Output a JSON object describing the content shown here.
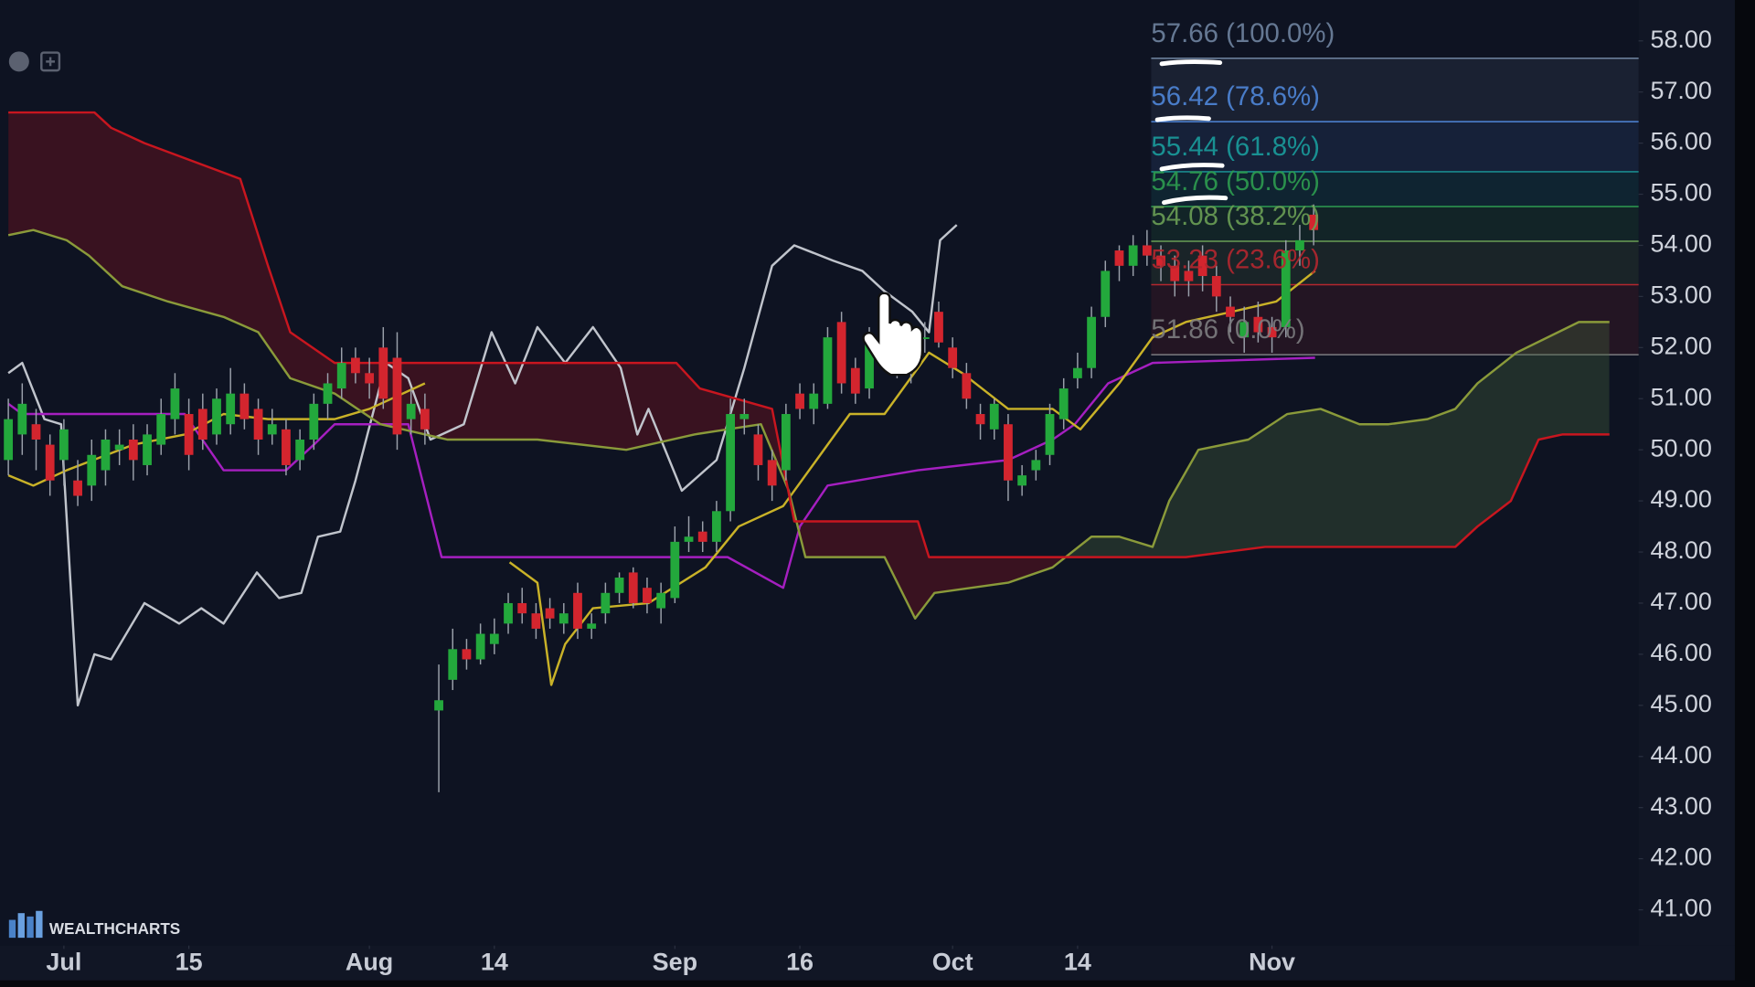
{
  "chart_data": {
    "type": "candlestick",
    "brand": "WEALTHCHARTS",
    "xlim": [
      -0.6,
      117.4
    ],
    "ylim": [
      40.3,
      58.8
    ],
    "xticks": [
      {
        "value": 4,
        "label": "Jul"
      },
      {
        "value": 13,
        "label": "15"
      },
      {
        "value": 26,
        "label": "Aug"
      },
      {
        "value": 35,
        "label": "14"
      },
      {
        "value": 48,
        "label": "Sep"
      },
      {
        "value": 57,
        "label": "16"
      },
      {
        "value": 68,
        "label": "Oct"
      },
      {
        "value": 77,
        "label": "14"
      },
      {
        "value": 91,
        "label": "Nov"
      }
    ],
    "yticks": [
      {
        "value": 41,
        "label": "41.00"
      },
      {
        "value": 42,
        "label": "42.00"
      },
      {
        "value": 43,
        "label": "43.00"
      },
      {
        "value": 44,
        "label": "44.00"
      },
      {
        "value": 45,
        "label": "45.00"
      },
      {
        "value": 46,
        "label": "46.00"
      },
      {
        "value": 47,
        "label": "47.00"
      },
      {
        "value": 48,
        "label": "48.00"
      },
      {
        "value": 49,
        "label": "49.00"
      },
      {
        "value": 50,
        "label": "50.00"
      },
      {
        "value": 51,
        "label": "51.00"
      },
      {
        "value": 52,
        "label": "52.00"
      },
      {
        "value": 53,
        "label": "53.00"
      },
      {
        "value": 54,
        "label": "54.00"
      },
      {
        "value": 55,
        "label": "55.00"
      },
      {
        "value": 56,
        "label": "56.00"
      },
      {
        "value": 57,
        "label": "57.00"
      },
      {
        "value": 58,
        "label": "58.00"
      }
    ],
    "up_color": "#23a83c",
    "down_color": "#d3252e",
    "x": [
      0,
      1,
      2,
      3,
      4,
      5,
      6,
      7,
      8,
      9,
      10,
      11,
      12,
      13,
      14,
      15,
      16,
      17,
      18,
      19,
      20,
      21,
      22,
      23,
      24,
      25,
      26,
      27,
      28,
      29,
      30,
      31,
      32,
      33,
      34,
      35,
      36,
      37,
      38,
      39,
      40,
      41,
      42,
      43,
      44,
      45,
      46,
      47,
      48,
      49,
      50,
      51,
      52,
      53,
      54,
      55,
      56,
      57,
      58,
      59,
      60,
      61,
      62,
      63,
      64,
      65,
      66,
      67,
      68,
      69,
      70,
      71,
      72,
      73,
      74,
      75,
      76,
      77,
      78,
      79,
      80,
      81,
      82,
      83,
      84,
      85,
      86,
      87,
      88,
      89,
      90,
      91,
      92,
      93,
      94
    ],
    "open": [
      49.8,
      50.3,
      50.5,
      50.1,
      49.8,
      49.4,
      49.3,
      49.6,
      50.0,
      50.2,
      49.7,
      50.1,
      50.6,
      50.7,
      50.8,
      50.3,
      50.5,
      51.1,
      50.8,
      50.3,
      50.4,
      49.8,
      50.2,
      50.9,
      51.2,
      51.8,
      51.5,
      52.0,
      51.8,
      50.6,
      50.8,
      44.9,
      45.5,
      46.1,
      45.9,
      46.2,
      46.6,
      47.0,
      46.8,
      46.9,
      46.6,
      47.2,
      46.5,
      46.8,
      47.2,
      47.6,
      47.3,
      46.9,
      47.1,
      48.2,
      48.4,
      48.2,
      48.8,
      50.6,
      50.3,
      49.8,
      49.6,
      51.1,
      50.8,
      50.9,
      52.5,
      51.6,
      51.2,
      52.3,
      51.9,
      51.7,
      52.2,
      52.7,
      52.0,
      51.5,
      50.7,
      50.4,
      50.5,
      49.3,
      49.6,
      49.9,
      50.6,
      51.4,
      51.6,
      52.6,
      53.9,
      53.6,
      54.0,
      53.8,
      53.6,
      53.5,
      53.8,
      53.4,
      52.8,
      52.2,
      52.6,
      52.4,
      52.4,
      53.9,
      54.6
    ],
    "high": [
      51.0,
      51.3,
      50.8,
      50.3,
      50.6,
      49.8,
      50.2,
      50.4,
      50.4,
      50.5,
      50.5,
      51.0,
      51.5,
      51.0,
      51.1,
      51.2,
      51.6,
      51.3,
      51.0,
      50.8,
      50.6,
      50.4,
      51.1,
      51.5,
      52.0,
      52.0,
      51.8,
      52.4,
      52.3,
      51.2,
      51.1,
      45.8,
      46.5,
      46.3,
      46.6,
      46.7,
      47.2,
      47.3,
      47.0,
      47.1,
      47.0,
      47.4,
      46.8,
      47.4,
      47.6,
      47.7,
      47.5,
      47.4,
      48.5,
      48.7,
      48.6,
      49.0,
      51.0,
      51.0,
      50.5,
      50.0,
      50.9,
      51.3,
      51.3,
      52.4,
      52.7,
      51.8,
      52.4,
      52.6,
      52.1,
      52.0,
      52.5,
      52.9,
      52.2,
      51.7,
      50.9,
      51.0,
      50.7,
      49.7,
      50.0,
      50.9,
      51.4,
      51.9,
      52.8,
      53.7,
      54.0,
      54.2,
      54.3,
      54.0,
      53.8,
      53.7,
      54.0,
      53.6,
      53.0,
      52.8,
      52.9,
      52.6,
      54.1,
      54.4,
      54.8
    ],
    "low": [
      49.5,
      49.9,
      49.6,
      49.1,
      49.3,
      48.9,
      49.0,
      49.3,
      49.7,
      49.4,
      49.5,
      49.9,
      50.3,
      49.6,
      50.0,
      50.1,
      50.3,
      50.4,
      49.9,
      50.1,
      49.5,
      49.6,
      50.0,
      50.6,
      51.0,
      51.3,
      51.0,
      50.8,
      50.0,
      50.3,
      50.1,
      43.3,
      45.3,
      45.7,
      45.8,
      46.0,
      46.4,
      46.6,
      46.3,
      46.5,
      46.4,
      46.3,
      46.3,
      46.6,
      47.0,
      46.9,
      46.8,
      46.6,
      47.0,
      48.0,
      48.0,
      48.0,
      48.6,
      50.3,
      49.4,
      49.0,
      49.4,
      50.6,
      50.5,
      50.8,
      51.1,
      50.9,
      51.0,
      51.8,
      51.4,
      51.3,
      51.9,
      52.0,
      51.4,
      50.8,
      50.2,
      50.2,
      49.0,
      49.1,
      49.4,
      49.7,
      50.4,
      51.2,
      51.4,
      52.4,
      53.3,
      53.4,
      53.6,
      53.3,
      53.0,
      53.0,
      53.1,
      52.7,
      52.3,
      51.9,
      52.1,
      51.9,
      52.2,
      53.6,
      54.0
    ],
    "close": [
      50.6,
      50.9,
      50.2,
      49.4,
      50.4,
      49.1,
      49.9,
      50.2,
      50.1,
      49.8,
      50.3,
      50.7,
      51.2,
      49.9,
      50.2,
      51.0,
      51.1,
      50.6,
      50.2,
      50.5,
      49.7,
      50.2,
      50.9,
      51.3,
      51.7,
      51.5,
      51.3,
      51.0,
      50.3,
      50.9,
      50.4,
      45.1,
      46.1,
      45.9,
      46.4,
      46.4,
      47.0,
      46.8,
      46.5,
      46.7,
      46.8,
      46.5,
      46.6,
      47.2,
      47.5,
      47.0,
      47.0,
      47.2,
      48.2,
      48.3,
      48.2,
      48.8,
      50.7,
      50.7,
      49.7,
      49.3,
      50.7,
      50.8,
      51.1,
      52.2,
      51.3,
      51.1,
      52.2,
      52.0,
      51.6,
      51.8,
      52.2,
      52.1,
      51.6,
      51.0,
      50.5,
      50.9,
      49.4,
      49.5,
      49.8,
      50.7,
      51.2,
      51.6,
      52.6,
      53.5,
      53.6,
      54.0,
      53.8,
      53.6,
      53.3,
      53.3,
      53.4,
      53.0,
      52.6,
      52.5,
      52.3,
      52.2,
      53.9,
      54.1,
      54.3
    ],
    "cloud_up_color": "rgba(70,100,60,0.35)",
    "cloud_down_color": "rgba(130,18,28,0.38)",
    "lines": [
      {
        "color": "#c0c4cc",
        "x": [
          0,
          1.0,
          2.6,
          3.8,
          5.0,
          6.2,
          7.4,
          9.8,
          12.3,
          13.9,
          15.5,
          17.9,
          19.5,
          21.1,
          22.3,
          23.9,
          25.0,
          27.2,
          28.8,
          30.4,
          32.8,
          34.8,
          36.5,
          38.1,
          40.1,
          42.1,
          44.1,
          45.3,
          46.1,
          48.5,
          51.0,
          53.0,
          55.0,
          56.6,
          59.4,
          61.5,
          63.1,
          65.1,
          66.3,
          67.1,
          68.3
        ],
        "values": [
          51.5,
          51.7,
          50.6,
          50.5,
          45.0,
          46.0,
          45.9,
          47.0,
          46.6,
          46.9,
          46.6,
          47.6,
          47.1,
          47.2,
          48.3,
          48.4,
          49.4,
          51.7,
          51.4,
          50.2,
          50.5,
          52.3,
          51.3,
          52.4,
          51.7,
          52.4,
          51.6,
          50.3,
          50.8,
          49.2,
          49.8,
          51.6,
          53.6,
          54.0,
          53.7,
          53.5,
          53.1,
          52.7,
          52.3,
          54.1,
          54.4
        ]
      },
      {
        "color": "#a51fc0",
        "x": [
          0,
          1.0,
          12.7,
          15.5,
          20.0,
          22.0,
          23.5,
          28.8,
          31.2,
          51.8,
          55.8,
          57.0,
          59.0,
          65.5,
          72.0,
          75.2,
          76.8,
          79.2,
          82.4,
          94.1
        ],
        "values": [
          50.9,
          50.7,
          50.7,
          49.6,
          49.6,
          50.1,
          50.5,
          50.5,
          47.9,
          47.9,
          47.3,
          48.5,
          49.3,
          49.6,
          49.8,
          50.2,
          50.5,
          51.3,
          51.7,
          51.8
        ]
      },
      {
        "color": "#c9b228",
        "x": [
          0,
          1.8,
          4.2,
          9.0,
          12.7,
          15.5,
          18.7,
          23.5,
          26.0,
          30.0,
          30.4,
          36.1,
          38.1,
          39.1,
          40.1,
          42.1,
          46.1,
          50.2,
          52.6,
          55.8,
          58.2,
          60.6,
          63.1,
          66.3,
          68.7,
          72.0,
          75.2,
          77.2,
          80.0,
          82.4,
          84.8,
          88.1,
          91.3,
          94.1
        ],
        "values": [
          49.5,
          49.3,
          49.6,
          50.1,
          50.3,
          50.7,
          50.6,
          50.6,
          50.8,
          51.3,
          null,
          47.8,
          47.4,
          45.4,
          46.2,
          46.9,
          47.0,
          47.7,
          48.5,
          48.9,
          49.8,
          50.7,
          50.7,
          51.9,
          51.5,
          50.8,
          50.8,
          50.4,
          51.3,
          52.2,
          52.5,
          52.7,
          52.9,
          53.5
        ]
      },
      {
        "color": "#8a9a3a",
        "x": [
          0,
          1.8,
          4.2,
          5.8,
          8.2,
          11.5,
          15.5,
          18.0,
          20.3,
          23.5,
          26.8,
          31.6,
          38.1,
          44.5,
          49.4,
          54.2,
          56.2,
          57.4,
          63.1,
          65.3,
          66.7,
          72.0,
          75.2,
          78.0,
          80.0,
          82.4,
          83.6,
          85.7,
          89.3,
          92.1,
          94.5,
          97.3,
          99.4,
          102.2,
          104.2,
          105.8,
          108.6,
          113.1,
          115.3
        ],
        "values": [
          54.2,
          54.3,
          54.1,
          53.8,
          53.2,
          52.9,
          52.6,
          52.3,
          51.4,
          51.1,
          50.5,
          50.2,
          50.2,
          50.0,
          50.3,
          50.5,
          49.2,
          47.9,
          47.9,
          46.7,
          47.2,
          47.4,
          47.7,
          48.3,
          48.3,
          48.1,
          49.0,
          50.0,
          50.2,
          50.7,
          50.8,
          50.5,
          50.5,
          50.6,
          50.8,
          51.3,
          51.9,
          52.5,
          52.5
        ]
      },
      {
        "color": "#c8161f",
        "x": [
          0,
          6.2,
          7.4,
          9.8,
          16.7,
          18.7,
          20.3,
          23.5,
          30.8,
          48.1,
          49.8,
          55.0,
          56.6,
          65.5,
          66.3,
          76.8,
          84.8,
          90.5,
          104.2,
          105.8,
          108.2,
          110.2,
          111.9,
          115.3
        ],
        "values": [
          56.6,
          56.6,
          56.3,
          56.0,
          55.3,
          53.6,
          52.3,
          51.7,
          51.7,
          51.7,
          51.2,
          50.8,
          48.6,
          48.6,
          47.9,
          47.9,
          47.9,
          48.1,
          48.1,
          48.5,
          49.0,
          50.2,
          50.3,
          50.3
        ]
      }
    ],
    "fib": {
      "x_start": 82.3,
      "levels": [
        {
          "value": 57.66,
          "label": "57.66 (100.0%)",
          "color": "#6f84a0"
        },
        {
          "value": 56.42,
          "label": "56.42 (78.6%)",
          "color": "#4f86d8"
        },
        {
          "value": 55.44,
          "label": "55.44 (61.8%)",
          "color": "#1a9c9c"
        },
        {
          "value": 54.76,
          "label": "54.76 (50.0%)",
          "color": "#2e9c50"
        },
        {
          "value": 54.08,
          "label": "54.08 (38.2%)",
          "color": "#6a9e55"
        },
        {
          "value": 53.23,
          "label": "53.23 (23.6%)",
          "color": "#b4272f"
        },
        {
          "value": 51.86,
          "label": "51.86 (0.0%)",
          "color": "#7c7c80"
        }
      ]
    }
  }
}
